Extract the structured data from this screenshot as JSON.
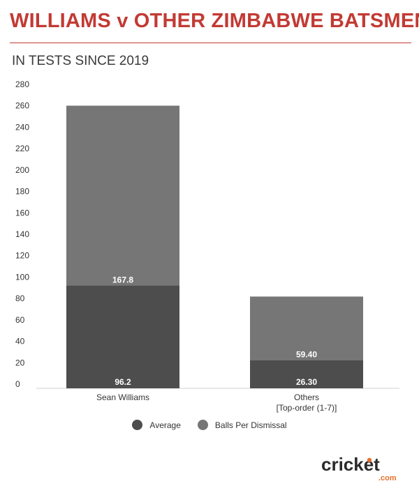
{
  "header": {
    "title": "WILLIAMS v OTHER ZIMBABWE BATSMEN",
    "subtitle": "IN TESTS SINCE 2019"
  },
  "chart_data": {
    "type": "bar",
    "stacked": true,
    "categories": [
      "Sean Williams",
      "Others"
    ],
    "category_sublabels": [
      "",
      "[Top-order (1-7)]"
    ],
    "series": [
      {
        "name": "Average",
        "values": [
          96.2,
          26.3
        ],
        "labels": [
          "96.2",
          "26.30"
        ],
        "color": "#4d4d4d"
      },
      {
        "name": "Balls Per Dismissal",
        "values": [
          167.8,
          59.4
        ],
        "labels": [
          "167.8",
          "59.40"
        ],
        "color": "#767676"
      }
    ],
    "ylim": [
      0,
      280
    ],
    "yticks": [
      0,
      20,
      40,
      60,
      80,
      100,
      120,
      140,
      160,
      180,
      200,
      220,
      240,
      260,
      280
    ],
    "grid": false,
    "legend_position": "bottom"
  },
  "logo": {
    "text": "cricket",
    "subtext": ".com"
  },
  "colors": {
    "title": "#c23a34",
    "logo_accent": "#e8702a"
  }
}
